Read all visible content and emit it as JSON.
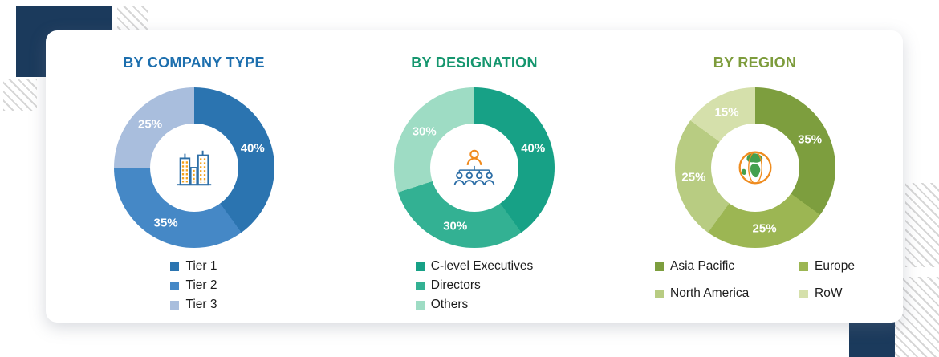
{
  "decor": {
    "navy_color": "#1b3a5c",
    "hatch_color": "#d6d6d6"
  },
  "chart_data": [
    {
      "type": "donut",
      "title": "BY COMPANY TYPE",
      "title_color": "#1d6fae",
      "center_icon": "buildings-icon",
      "legend_position": "bottom",
      "legend_columns": 1,
      "unit": "%",
      "segments": [
        {
          "label": "Tier 1",
          "value": 40,
          "display": "40%",
          "color": "#2b74b0"
        },
        {
          "label": "Tier 2",
          "value": 35,
          "display": "35%",
          "color": "#4588c6"
        },
        {
          "label": "Tier 3",
          "value": 25,
          "display": "25%",
          "color": "#a9bedd"
        }
      ]
    },
    {
      "type": "donut",
      "title": "BY DESIGNATION",
      "title_color": "#15966e",
      "center_icon": "org-hierarchy-icon",
      "legend_position": "bottom",
      "legend_columns": 1,
      "unit": "%",
      "segments": [
        {
          "label": "C-level Executives",
          "value": 40,
          "display": "40%",
          "color": "#17a186"
        },
        {
          "label": "Directors",
          "value": 30,
          "display": "30%",
          "color": "#33b193"
        },
        {
          "label": "Others",
          "value": 30,
          "display": "30%",
          "color": "#9edcc4"
        }
      ]
    },
    {
      "type": "donut",
      "title": "BY REGION",
      "title_color": "#7d9c3c",
      "center_icon": "globe-icon",
      "legend_position": "bottom",
      "legend_columns": 2,
      "unit": "%",
      "segments": [
        {
          "label": "Asia Pacific",
          "value": 35,
          "display": "35%",
          "color": "#7d9e3e"
        },
        {
          "label": "Europe",
          "value": 25,
          "display": "25%",
          "color": "#9cb653"
        },
        {
          "label": "North America",
          "value": 25,
          "display": "25%",
          "color": "#b8cc82"
        },
        {
          "label": "RoW",
          "value": 15,
          "display": "15%",
          "color": "#d5e0ab"
        }
      ]
    }
  ]
}
